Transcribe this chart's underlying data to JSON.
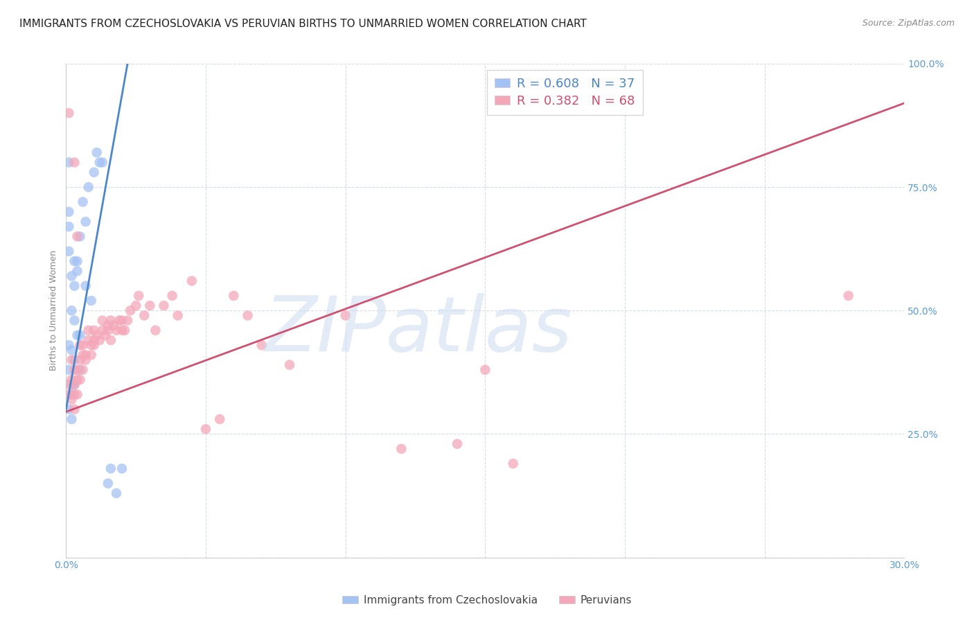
{
  "title": "IMMIGRANTS FROM CZECHOSLOVAKIA VS PERUVIAN BIRTHS TO UNMARRIED WOMEN CORRELATION CHART",
  "source": "Source: ZipAtlas.com",
  "ylabel": "Births to Unmarried Women",
  "x_min": 0.0,
  "x_max": 0.3,
  "y_min": 0.0,
  "y_max": 1.0,
  "x_ticks": [
    0.0,
    0.05,
    0.1,
    0.15,
    0.2,
    0.25,
    0.3
  ],
  "x_tick_labels": [
    "0.0%",
    "",
    "",
    "",
    "",
    "",
    "30.0%"
  ],
  "y_ticks": [
    0.0,
    0.25,
    0.5,
    0.75,
    1.0
  ],
  "y_tick_labels_right": [
    "",
    "25.0%",
    "50.0%",
    "75.0%",
    "100.0%"
  ],
  "legend_labels": [
    "Immigrants from Czechoslovakia",
    "Peruvians"
  ],
  "blue_color": "#a4c2f4",
  "pink_color": "#f4a7b9",
  "blue_line_color": "#4a86c8",
  "pink_line_color": "#d05070",
  "R_blue": 0.608,
  "N_blue": 37,
  "R_pink": 0.382,
  "N_pink": 68,
  "blue_R_color": "#4a86c8",
  "blue_N_color": "#4a86c8",
  "pink_R_color": "#d05070",
  "pink_N_color": "#d05070",
  "blue_x": [
    0.001,
    0.001,
    0.001,
    0.001,
    0.002,
    0.002,
    0.002,
    0.002,
    0.003,
    0.003,
    0.003,
    0.004,
    0.004,
    0.005,
    0.005,
    0.006,
    0.007,
    0.007,
    0.008,
    0.009,
    0.01,
    0.011,
    0.012,
    0.013,
    0.015,
    0.016,
    0.018,
    0.02,
    0.001,
    0.001,
    0.002,
    0.003,
    0.001,
    0.002,
    0.003,
    0.004,
    0.005
  ],
  "blue_y": [
    0.3,
    0.62,
    0.67,
    0.8,
    0.28,
    0.35,
    0.42,
    0.5,
    0.55,
    0.35,
    0.48,
    0.58,
    0.45,
    0.45,
    0.65,
    0.72,
    0.68,
    0.55,
    0.75,
    0.52,
    0.78,
    0.82,
    0.8,
    0.8,
    0.15,
    0.18,
    0.13,
    0.18,
    0.38,
    0.43,
    0.33,
    0.4,
    0.7,
    0.57,
    0.6,
    0.6,
    0.38
  ],
  "pink_x": [
    0.001,
    0.001,
    0.002,
    0.002,
    0.002,
    0.003,
    0.003,
    0.003,
    0.003,
    0.004,
    0.004,
    0.004,
    0.005,
    0.005,
    0.005,
    0.006,
    0.006,
    0.006,
    0.007,
    0.007,
    0.008,
    0.008,
    0.009,
    0.009,
    0.01,
    0.01,
    0.01,
    0.011,
    0.012,
    0.013,
    0.013,
    0.014,
    0.015,
    0.015,
    0.016,
    0.016,
    0.017,
    0.018,
    0.019,
    0.02,
    0.02,
    0.021,
    0.022,
    0.023,
    0.025,
    0.026,
    0.028,
    0.03,
    0.032,
    0.035,
    0.038,
    0.04,
    0.045,
    0.05,
    0.055,
    0.06,
    0.065,
    0.07,
    0.08,
    0.1,
    0.12,
    0.14,
    0.15,
    0.16,
    0.003,
    0.004,
    0.28,
    0.001
  ],
  "pink_y": [
    0.33,
    0.35,
    0.32,
    0.36,
    0.4,
    0.3,
    0.33,
    0.35,
    0.38,
    0.33,
    0.36,
    0.38,
    0.36,
    0.4,
    0.43,
    0.38,
    0.41,
    0.43,
    0.4,
    0.41,
    0.44,
    0.46,
    0.41,
    0.43,
    0.44,
    0.46,
    0.43,
    0.45,
    0.44,
    0.46,
    0.48,
    0.45,
    0.47,
    0.46,
    0.48,
    0.44,
    0.47,
    0.46,
    0.48,
    0.46,
    0.48,
    0.46,
    0.48,
    0.5,
    0.51,
    0.53,
    0.49,
    0.51,
    0.46,
    0.51,
    0.53,
    0.49,
    0.56,
    0.26,
    0.28,
    0.53,
    0.49,
    0.43,
    0.39,
    0.49,
    0.22,
    0.23,
    0.38,
    0.19,
    0.8,
    0.65,
    0.53,
    0.9
  ],
  "blue_line_x0": 0.0,
  "blue_line_y0": 0.3,
  "blue_line_x1": 0.022,
  "blue_line_y1": 1.0,
  "pink_line_x0": 0.0,
  "pink_line_y0": 0.295,
  "pink_line_x1": 0.3,
  "pink_line_y1": 0.92,
  "watermark_text": "ZIPatlas",
  "watermark_color": "#c8d8f0",
  "watermark_alpha": 0.5,
  "background_color": "#ffffff",
  "grid_color": "#d0d8e8",
  "title_fontsize": 11,
  "axis_label_fontsize": 9,
  "tick_fontsize": 10,
  "legend_fontsize": 13,
  "source_fontsize": 9
}
